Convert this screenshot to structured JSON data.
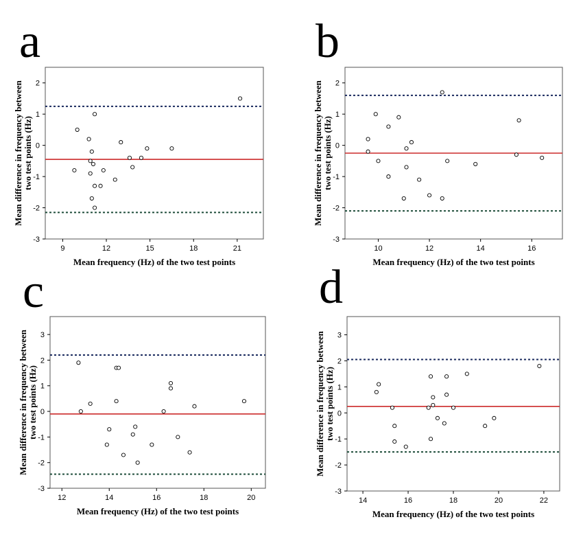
{
  "chart_data": [
    {
      "type": "scatter",
      "panel": "a",
      "xlabel": "Mean frequency (Hz) of the two test points",
      "ylabel_line1": "Mean difference in frequency between",
      "ylabel_line2": "two test points (Hz)",
      "xlim": [
        7.8,
        22.8
      ],
      "ylim": [
        -3,
        2.5
      ],
      "xticks": [
        9,
        12,
        15,
        18,
        21
      ],
      "yticks": [
        -3,
        -2,
        -1,
        0,
        1,
        2
      ],
      "mean_line": -0.45,
      "upper_loa": 1.25,
      "lower_loa": -2.15,
      "points": [
        [
          9.8,
          -0.8
        ],
        [
          10.0,
          0.5
        ],
        [
          10.8,
          0.2
        ],
        [
          10.9,
          -0.5
        ],
        [
          11.0,
          -0.2
        ],
        [
          10.9,
          -0.9
        ],
        [
          11.1,
          -0.6
        ],
        [
          11.0,
          -1.7
        ],
        [
          11.2,
          -1.3
        ],
        [
          11.2,
          -2.0
        ],
        [
          11.2,
          1.0
        ],
        [
          11.6,
          -1.3
        ],
        [
          11.8,
          -0.8
        ],
        [
          12.6,
          -1.1
        ],
        [
          13.0,
          0.1
        ],
        [
          13.6,
          -0.4
        ],
        [
          13.8,
          -0.7
        ],
        [
          14.4,
          -0.4
        ],
        [
          14.8,
          -0.1
        ],
        [
          16.5,
          -0.1
        ],
        [
          21.2,
          1.5
        ]
      ]
    },
    {
      "type": "scatter",
      "panel": "b",
      "xlabel": "Mean frequency (Hz) of the two test points",
      "ylabel_line1": "Mean difference in frequency between",
      "ylabel_line2": "two test points (Hz)",
      "xlim": [
        8.7,
        17.2
      ],
      "ylim": [
        -3,
        2.5
      ],
      "xticks": [
        10,
        12,
        14,
        16
      ],
      "yticks": [
        -3,
        -2,
        -1,
        0,
        1,
        2
      ],
      "mean_line": -0.25,
      "upper_loa": 1.6,
      "lower_loa": -2.1,
      "points": [
        [
          9.6,
          0.2
        ],
        [
          9.6,
          -0.2
        ],
        [
          9.9,
          1.0
        ],
        [
          10.0,
          -0.5
        ],
        [
          10.4,
          0.6
        ],
        [
          10.4,
          -1.0
        ],
        [
          10.8,
          0.9
        ],
        [
          11.0,
          -1.7
        ],
        [
          11.1,
          -0.1
        ],
        [
          11.1,
          -0.7
        ],
        [
          11.3,
          0.1
        ],
        [
          11.6,
          -1.1
        ],
        [
          12.0,
          -1.6
        ],
        [
          12.5,
          1.7
        ],
        [
          12.5,
          -1.7
        ],
        [
          12.7,
          -0.5
        ],
        [
          13.8,
          -0.6
        ],
        [
          15.4,
          -0.3
        ],
        [
          15.5,
          0.8
        ],
        [
          16.4,
          -0.4
        ]
      ]
    },
    {
      "type": "scatter",
      "panel": "c",
      "xlabel": "Mean frequency (Hz) of the two test points",
      "ylabel_line1": "Mean difference in frequency between",
      "ylabel_line2": "two test points (Hz)",
      "xlim": [
        11.5,
        20.6
      ],
      "ylim": [
        -3,
        3.7
      ],
      "xticks": [
        12,
        14,
        16,
        18,
        20
      ],
      "yticks": [
        -3,
        -2,
        -1,
        0,
        1,
        2,
        3
      ],
      "mean_line": -0.1,
      "upper_loa": 2.2,
      "lower_loa": -2.45,
      "points": [
        [
          12.7,
          1.9
        ],
        [
          12.8,
          0.0
        ],
        [
          13.2,
          0.3
        ],
        [
          13.9,
          -1.3
        ],
        [
          14.0,
          -0.7
        ],
        [
          14.3,
          1.7
        ],
        [
          14.4,
          1.7
        ],
        [
          14.3,
          0.4
        ],
        [
          14.6,
          -1.7
        ],
        [
          15.0,
          -0.9
        ],
        [
          15.1,
          -0.6
        ],
        [
          15.2,
          -2.0
        ],
        [
          15.8,
          -1.3
        ],
        [
          16.3,
          0.0
        ],
        [
          16.6,
          1.1
        ],
        [
          16.6,
          0.9
        ],
        [
          16.9,
          -1.0
        ],
        [
          17.4,
          -1.6
        ],
        [
          17.6,
          0.2
        ],
        [
          19.7,
          0.4
        ]
      ]
    },
    {
      "type": "scatter",
      "panel": "d",
      "xlabel": "Mean frequency (Hz) of the two test points",
      "ylabel_line1": "Mean difference in frequency between",
      "ylabel_line2": "two test points (Hz)",
      "xlim": [
        13.3,
        22.7
      ],
      "ylim": [
        -3,
        3.7
      ],
      "xticks": [
        14,
        16,
        18,
        20,
        22
      ],
      "yticks": [
        -3,
        -2,
        -1,
        0,
        1,
        2,
        3
      ],
      "mean_line": 0.25,
      "upper_loa": 2.05,
      "lower_loa": -1.5,
      "points": [
        [
          14.6,
          0.8
        ],
        [
          14.7,
          1.1
        ],
        [
          15.3,
          0.2
        ],
        [
          15.4,
          -1.1
        ],
        [
          15.4,
          -0.5
        ],
        [
          15.9,
          -1.3
        ],
        [
          16.9,
          0.2
        ],
        [
          17.0,
          1.4
        ],
        [
          17.0,
          -1.0
        ],
        [
          17.1,
          0.6
        ],
        [
          17.1,
          0.3
        ],
        [
          17.3,
          -0.2
        ],
        [
          17.6,
          -0.4
        ],
        [
          17.7,
          0.7
        ],
        [
          17.7,
          1.4
        ],
        [
          18.0,
          0.2
        ],
        [
          18.6,
          1.5
        ],
        [
          19.4,
          -0.5
        ],
        [
          19.8,
          -0.2
        ],
        [
          21.8,
          1.8
        ]
      ]
    }
  ],
  "colors": {
    "mean_line": "#cc2a2a",
    "upper_loa": "#1a2a5e",
    "lower_loa": "#1e4d3a",
    "axis": "#555555"
  }
}
